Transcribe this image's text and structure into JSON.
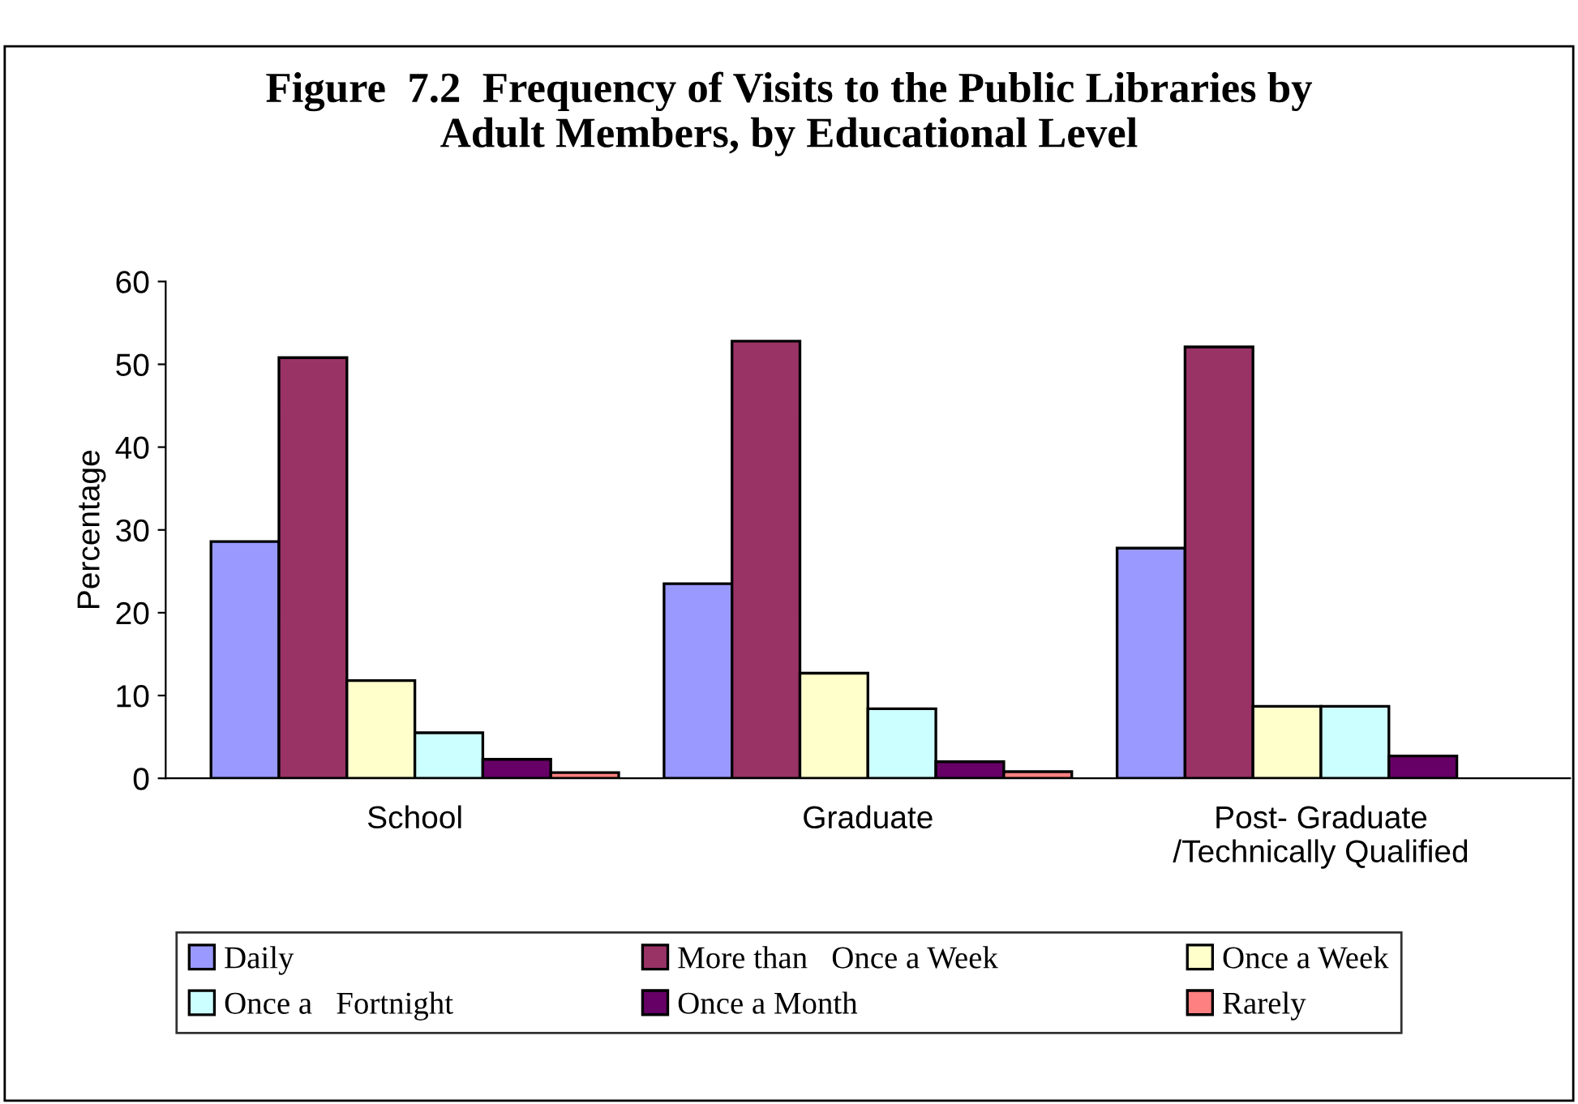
{
  "chart_data": {
    "type": "bar",
    "title": "Figure  7.2  Frequency of Visits to the Public Libraries by\nAdult Members, by Educational Level",
    "ylabel": "Percentage",
    "categories": [
      "School",
      "Graduate",
      "Post- Graduate\n/Technically Qualified"
    ],
    "series": [
      {
        "name": "Daily",
        "color": "#9999ff",
        "values": [
          28.6,
          23.5,
          27.8
        ]
      },
      {
        "name": "More than   Once a Week",
        "color": "#993366",
        "values": [
          50.8,
          52.8,
          52.1
        ]
      },
      {
        "name": "Once a Week",
        "color": "#ffffcc",
        "values": [
          11.8,
          12.7,
          8.7
        ]
      },
      {
        "name": "Once a   Fortnight",
        "color": "#ccffff",
        "values": [
          5.5,
          8.4,
          8.7
        ]
      },
      {
        "name": "Once a Month",
        "color": "#660066",
        "values": [
          2.3,
          2.0,
          2.7
        ]
      },
      {
        "name": "Rarely",
        "color": "#ff8080",
        "values": [
          0.7,
          0.8,
          null
        ]
      }
    ],
    "ylim": [
      0,
      60
    ],
    "yticks": [
      0,
      10,
      20,
      30,
      40,
      50,
      60
    ],
    "grid": false,
    "legend": "bottom"
  }
}
